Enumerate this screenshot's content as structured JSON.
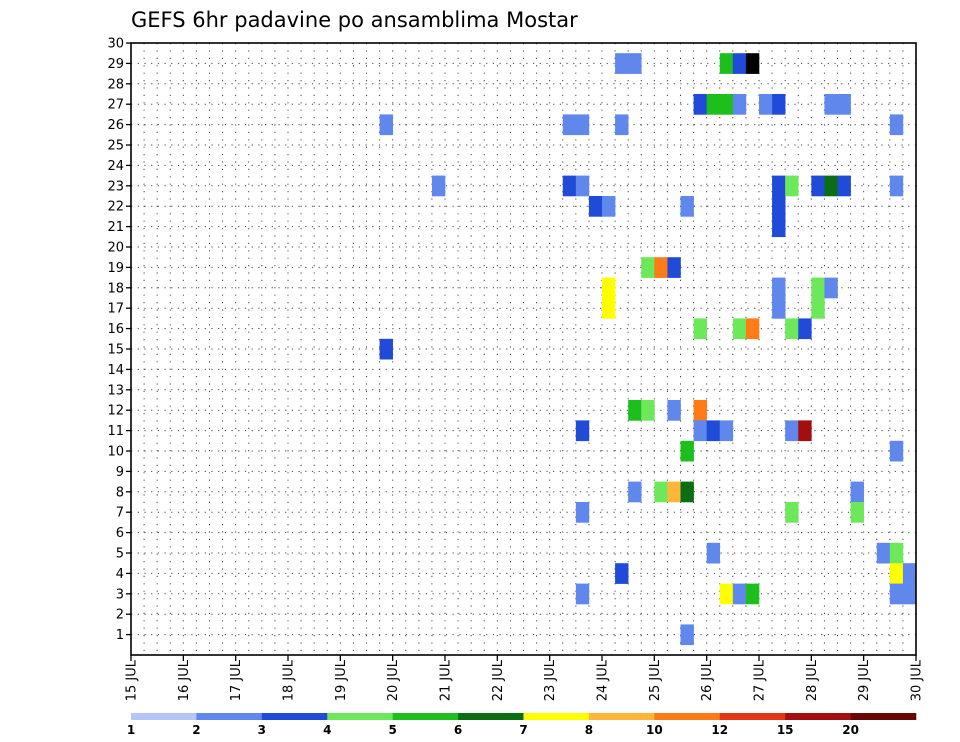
{
  "chart_data": {
    "type": "heatmap",
    "title": "GEFS 6hr padavine po ansamblima Mostar",
    "xlabel": "",
    "ylabel": "",
    "x_range_days": [
      15,
      30
    ],
    "y_range": [
      0,
      30
    ],
    "grid": true,
    "y_ticks": [
      1,
      2,
      3,
      4,
      5,
      6,
      7,
      8,
      9,
      10,
      11,
      12,
      13,
      14,
      15,
      16,
      17,
      18,
      19,
      20,
      21,
      22,
      23,
      24,
      25,
      26,
      27,
      28,
      29,
      30
    ],
    "x_ticks": [
      {
        "day": 15,
        "label": "15 JUL"
      },
      {
        "day": 16,
        "label": "16 JUL"
      },
      {
        "day": 17,
        "label": "17 JUL"
      },
      {
        "day": 18,
        "label": "18 JUL"
      },
      {
        "day": 19,
        "label": "19 JUL"
      },
      {
        "day": 20,
        "label": "20 JUL"
      },
      {
        "day": 21,
        "label": "21 JUL"
      },
      {
        "day": 22,
        "label": "22 JUL"
      },
      {
        "day": 23,
        "label": "23 JUL"
      },
      {
        "day": 24,
        "label": "24 JUL"
      },
      {
        "day": 25,
        "label": "25 JUL"
      },
      {
        "day": 26,
        "label": "26 JUL"
      },
      {
        "day": 27,
        "label": "27 JUL"
      },
      {
        "day": 28,
        "label": "28 JUL"
      },
      {
        "day": 29,
        "label": "29 JUL"
      },
      {
        "day": 30,
        "label": "30 JUL"
      }
    ],
    "colorbar": {
      "labels": [
        "1",
        "2",
        "3",
        "4",
        "5",
        "6",
        "7",
        "8",
        "10",
        "12",
        "15",
        "20"
      ],
      "colors": [
        "#b3c6f5",
        "#5f87ec",
        "#1f4bd8",
        "#6de85a",
        "#1cbf1c",
        "#0b6e14",
        "#ffff00",
        "#ffb43a",
        "#ff7b18",
        "#e53517",
        "#a30e0e",
        "#6b0606"
      ]
    },
    "cells": [
      {
        "date": "24.25",
        "member": 29,
        "level": 1
      },
      {
        "date": "24.5",
        "member": 29,
        "level": 1
      },
      {
        "date": "26.25",
        "member": 29,
        "level": 4
      },
      {
        "date": "26.5",
        "member": 29,
        "level": 2
      },
      {
        "date": "26.75",
        "member": 29,
        "level": 12
      },
      {
        "date": "25.75",
        "member": 27,
        "level": 2
      },
      {
        "date": "26.0",
        "member": 27,
        "level": 4
      },
      {
        "date": "26.25",
        "member": 27,
        "level": 4
      },
      {
        "date": "26.5",
        "member": 27,
        "level": 1
      },
      {
        "date": "27.0",
        "member": 27,
        "level": 1
      },
      {
        "date": "27.25",
        "member": 27,
        "level": 2
      },
      {
        "date": "28.25",
        "member": 27,
        "level": 1
      },
      {
        "date": "28.5",
        "member": 27,
        "level": 1
      },
      {
        "date": "19.75",
        "member": 26,
        "level": 1
      },
      {
        "date": "23.25",
        "member": 26,
        "level": 1
      },
      {
        "date": "23.5",
        "member": 26,
        "level": 1
      },
      {
        "date": "24.25",
        "member": 26,
        "level": 1
      },
      {
        "date": "29.5",
        "member": 26,
        "level": 1
      },
      {
        "date": "20.75",
        "member": 23,
        "level": 1
      },
      {
        "date": "23.25",
        "member": 23,
        "level": 2
      },
      {
        "date": "23.5",
        "member": 23,
        "level": 1
      },
      {
        "date": "27.25",
        "member": 23,
        "level": 2
      },
      {
        "date": "27.5",
        "member": 23,
        "level": 3
      },
      {
        "date": "28.0",
        "member": 23,
        "level": 2
      },
      {
        "date": "28.25",
        "member": 23,
        "level": 5
      },
      {
        "date": "28.5",
        "member": 23,
        "level": 2
      },
      {
        "date": "29.5",
        "member": 23,
        "level": 1
      },
      {
        "date": "23.75",
        "member": 22,
        "level": 2
      },
      {
        "date": "24.0",
        "member": 22,
        "level": 1
      },
      {
        "date": "25.5",
        "member": 22,
        "level": 1
      },
      {
        "date": "27.25",
        "member": 22,
        "level": 2
      },
      {
        "date": "27.25",
        "member": 21,
        "level": 2
      },
      {
        "date": "24.75",
        "member": 19,
        "level": 3
      },
      {
        "date": "25.0",
        "member": 19,
        "level": 8
      },
      {
        "date": "25.25",
        "member": 19,
        "level": 2
      },
      {
        "date": "24.0",
        "member": 18,
        "level": 6
      },
      {
        "date": "27.25",
        "member": 18,
        "level": 1
      },
      {
        "date": "28.0",
        "member": 18,
        "level": 3
      },
      {
        "date": "28.25",
        "member": 18,
        "level": 1
      },
      {
        "date": "24.0",
        "member": 17,
        "level": 6
      },
      {
        "date": "27.25",
        "member": 17,
        "level": 1
      },
      {
        "date": "28.0",
        "member": 17,
        "level": 3
      },
      {
        "date": "25.75",
        "member": 16,
        "level": 3
      },
      {
        "date": "26.5",
        "member": 16,
        "level": 3
      },
      {
        "date": "26.75",
        "member": 16,
        "level": 8
      },
      {
        "date": "27.5",
        "member": 16,
        "level": 3
      },
      {
        "date": "27.75",
        "member": 16,
        "level": 2
      },
      {
        "date": "19.75",
        "member": 15,
        "level": 2
      },
      {
        "date": "24.5",
        "member": 12,
        "level": 4
      },
      {
        "date": "24.75",
        "member": 12,
        "level": 3
      },
      {
        "date": "25.25",
        "member": 12,
        "level": 1
      },
      {
        "date": "25.75",
        "member": 12,
        "level": 8
      },
      {
        "date": "23.5",
        "member": 11,
        "level": 2
      },
      {
        "date": "25.75",
        "member": 11,
        "level": 1
      },
      {
        "date": "26.0",
        "member": 11,
        "level": 2
      },
      {
        "date": "26.25",
        "member": 11,
        "level": 1
      },
      {
        "date": "27.5",
        "member": 11,
        "level": 1
      },
      {
        "date": "27.75",
        "member": 11,
        "level": 10
      },
      {
        "date": "25.5",
        "member": 10,
        "level": 4
      },
      {
        "date": "29.5",
        "member": 10,
        "level": 1
      },
      {
        "date": "24.5",
        "member": 8,
        "level": 1
      },
      {
        "date": "25.0",
        "member": 8,
        "level": 3
      },
      {
        "date": "25.25",
        "member": 8,
        "level": 7
      },
      {
        "date": "25.5",
        "member": 8,
        "level": 5
      },
      {
        "date": "28.75",
        "member": 8,
        "level": 1
      },
      {
        "date": "23.5",
        "member": 7,
        "level": 1
      },
      {
        "date": "27.5",
        "member": 7,
        "level": 3
      },
      {
        "date": "28.75",
        "member": 7,
        "level": 3
      },
      {
        "date": "26.0",
        "member": 5,
        "level": 1
      },
      {
        "date": "29.25",
        "member": 5,
        "level": 1
      },
      {
        "date": "29.5",
        "member": 5,
        "level": 3
      },
      {
        "date": "24.25",
        "member": 4,
        "level": 2
      },
      {
        "date": "29.5",
        "member": 4,
        "level": 6
      },
      {
        "date": "29.75",
        "member": 4,
        "level": 1
      },
      {
        "date": "23.5",
        "member": 3,
        "level": 1
      },
      {
        "date": "26.25",
        "member": 3,
        "level": 6
      },
      {
        "date": "26.5",
        "member": 3,
        "level": 1
      },
      {
        "date": "26.75",
        "member": 3,
        "level": 4
      },
      {
        "date": "29.5",
        "member": 3,
        "level": 1
      },
      {
        "date": "29.75",
        "member": 3,
        "level": 1
      },
      {
        "date": "25.5",
        "member": 1,
        "level": 1
      }
    ]
  }
}
